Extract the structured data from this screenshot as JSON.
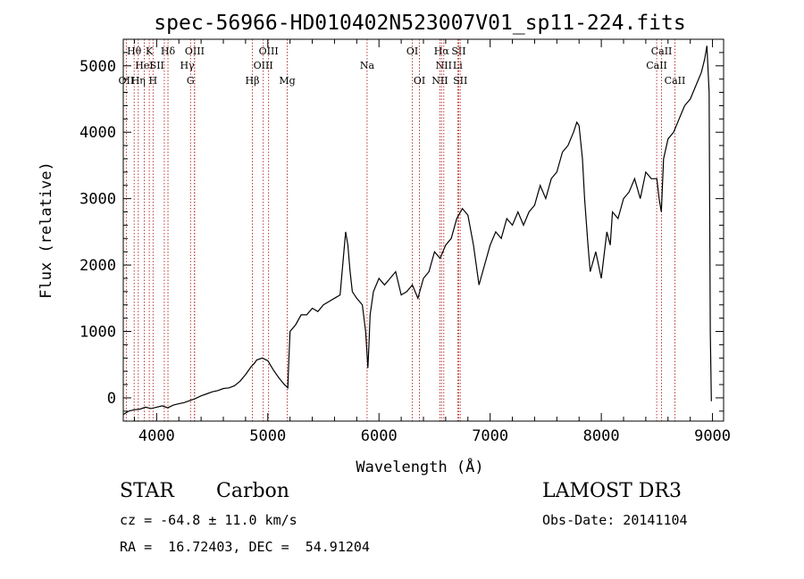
{
  "chart_data": {
    "type": "line",
    "title": "spec-56966-HD010402N523007V01_sp11-224.fits",
    "xlabel": "Wavelength (Å)",
    "ylabel": "Flux (relative)",
    "xlim": [
      3700,
      9100
    ],
    "ylim": [
      -350,
      5400
    ],
    "x_ticks": [
      4000,
      5000,
      6000,
      7000,
      8000,
      9000
    ],
    "x_tick_labels": [
      "4000",
      "5000",
      "6000",
      "7000",
      "8000",
      "9000"
    ],
    "y_ticks": [
      0,
      1000,
      2000,
      3000,
      4000,
      5000
    ],
    "y_tick_labels": [
      "0",
      "1000",
      "2000",
      "3000",
      "4000",
      "5000"
    ],
    "spectrum": {
      "x": [
        3700,
        3750,
        3800,
        3850,
        3900,
        3950,
        4000,
        4050,
        4100,
        4150,
        4200,
        4250,
        4300,
        4350,
        4400,
        4450,
        4500,
        4550,
        4600,
        4650,
        4700,
        4750,
        4800,
        4850,
        4880,
        4900,
        4950,
        5000,
        5050,
        5100,
        5150,
        5180,
        5190,
        5200,
        5250,
        5300,
        5350,
        5400,
        5450,
        5500,
        5550,
        5600,
        5650,
        5700,
        5720,
        5740,
        5760,
        5800,
        5850,
        5880,
        5900,
        5910,
        5920,
        5950,
        6000,
        6050,
        6100,
        6150,
        6200,
        6250,
        6300,
        6350,
        6400,
        6450,
        6500,
        6550,
        6600,
        6650,
        6700,
        6750,
        6800,
        6850,
        6900,
        6950,
        7000,
        7050,
        7100,
        7150,
        7200,
        7250,
        7300,
        7350,
        7400,
        7450,
        7500,
        7550,
        7600,
        7650,
        7700,
        7750,
        7780,
        7800,
        7830,
        7850,
        7880,
        7900,
        7950,
        8000,
        8050,
        8080,
        8100,
        8150,
        8200,
        8250,
        8300,
        8350,
        8400,
        8450,
        8500,
        8520,
        8540,
        8560,
        8600,
        8650,
        8700,
        8750,
        8800,
        8850,
        8900,
        8930,
        8950,
        8970,
        8980,
        8990
      ],
      "y": [
        -250,
        -200,
        -180,
        -170,
        -140,
        -160,
        -140,
        -120,
        -150,
        -110,
        -90,
        -70,
        -40,
        -10,
        30,
        60,
        90,
        110,
        140,
        150,
        180,
        250,
        350,
        470,
        520,
        570,
        600,
        560,
        420,
        300,
        200,
        150,
        600,
        1000,
        1100,
        1250,
        1250,
        1350,
        1300,
        1400,
        1450,
        1500,
        1550,
        2500,
        2300,
        1900,
        1600,
        1500,
        1400,
        1000,
        450,
        800,
        1250,
        1600,
        1800,
        1700,
        1800,
        1900,
        1550,
        1600,
        1700,
        1500,
        1800,
        1900,
        2200,
        2100,
        2300,
        2400,
        2700,
        2850,
        2750,
        2300,
        1700,
        2000,
        2300,
        2500,
        2400,
        2700,
        2600,
        2800,
        2600,
        2800,
        2900,
        3200,
        3000,
        3300,
        3400,
        3700,
        3800,
        4000,
        4150,
        4100,
        3600,
        3000,
        2300,
        1900,
        2200,
        1800,
        2500,
        2300,
        2800,
        2700,
        3000,
        3100,
        3300,
        3000,
        3400,
        3300,
        3300,
        3000,
        2800,
        3600,
        3900,
        4000,
        4200,
        4400,
        4500,
        4700,
        4900,
        5100,
        5300,
        4600,
        1000,
        -50
      ]
    },
    "lines": [
      {
        "label": "Hθ",
        "x": 3798,
        "row": 0,
        "anchor": "middle"
      },
      {
        "label": "K",
        "x": 3934,
        "row": 0,
        "anchor": "middle"
      },
      {
        "label": "Hδ",
        "x": 4102,
        "row": 0,
        "anchor": "middle"
      },
      {
        "label": "OIII",
        "x": 4342,
        "row": 0,
        "anchor": "middle"
      },
      {
        "label": "OIII",
        "x": 5007,
        "row": 0,
        "anchor": "middle"
      },
      {
        "label": "OI",
        "x": 6300,
        "row": 0,
        "anchor": "middle"
      },
      {
        "label": "Hα",
        "x": 6563,
        "row": 0,
        "anchor": "middle"
      },
      {
        "label": "SII",
        "x": 6717,
        "row": 0,
        "anchor": "middle"
      },
      {
        "label": "CaII",
        "x": 8542,
        "row": 0,
        "anchor": "middle"
      },
      {
        "label": "HeI",
        "x": 3889,
        "row": 1,
        "anchor": "middle"
      },
      {
        "label": "SII",
        "x": 4069,
        "row": 1,
        "anchor": "end"
      },
      {
        "label": "Hγ",
        "x": 4340,
        "row": 1,
        "anchor": "end"
      },
      {
        "label": "OIII",
        "x": 4959,
        "row": 1,
        "anchor": "middle"
      },
      {
        "label": "Na",
        "x": 5893,
        "row": 1,
        "anchor": "middle"
      },
      {
        "label": "NII",
        "x": 6583,
        "row": 1,
        "anchor": "middle"
      },
      {
        "label": "Li",
        "x": 6708,
        "row": 1,
        "anchor": "middle"
      },
      {
        "label": "CaII",
        "x": 8498,
        "row": 1,
        "anchor": "middle"
      },
      {
        "label": "OII",
        "x": 3727,
        "row": 2,
        "anchor": "middle"
      },
      {
        "label": "Hη",
        "x": 3835,
        "row": 2,
        "anchor": "middle"
      },
      {
        "label": "H",
        "x": 3968,
        "row": 2,
        "anchor": "middle"
      },
      {
        "label": "G",
        "x": 4305,
        "row": 2,
        "anchor": "middle"
      },
      {
        "label": "Hβ",
        "x": 4861,
        "row": 2,
        "anchor": "middle"
      },
      {
        "label": "Mg",
        "x": 5175,
        "row": 2,
        "anchor": "middle"
      },
      {
        "label": "OI",
        "x": 6364,
        "row": 2,
        "anchor": "middle"
      },
      {
        "label": "NII",
        "x": 6548,
        "row": 2,
        "anchor": "middle"
      },
      {
        "label": "SII",
        "x": 6731,
        "row": 2,
        "anchor": "middle"
      },
      {
        "label": "CaII",
        "x": 8662,
        "row": 2,
        "anchor": "middle"
      }
    ]
  },
  "info": {
    "class": "STAR",
    "subclass": "Carbon",
    "cz": "cz = -64.8 ± 11.0 km/s",
    "radec": "RA =  16.72403, DEC =  54.91204",
    "survey": "LAMOST DR3",
    "obs_date": "Obs-Date: 20141104"
  },
  "colors": {
    "spectrum": "#000000",
    "line_marker": "#b22222",
    "axes": "#000000"
  }
}
